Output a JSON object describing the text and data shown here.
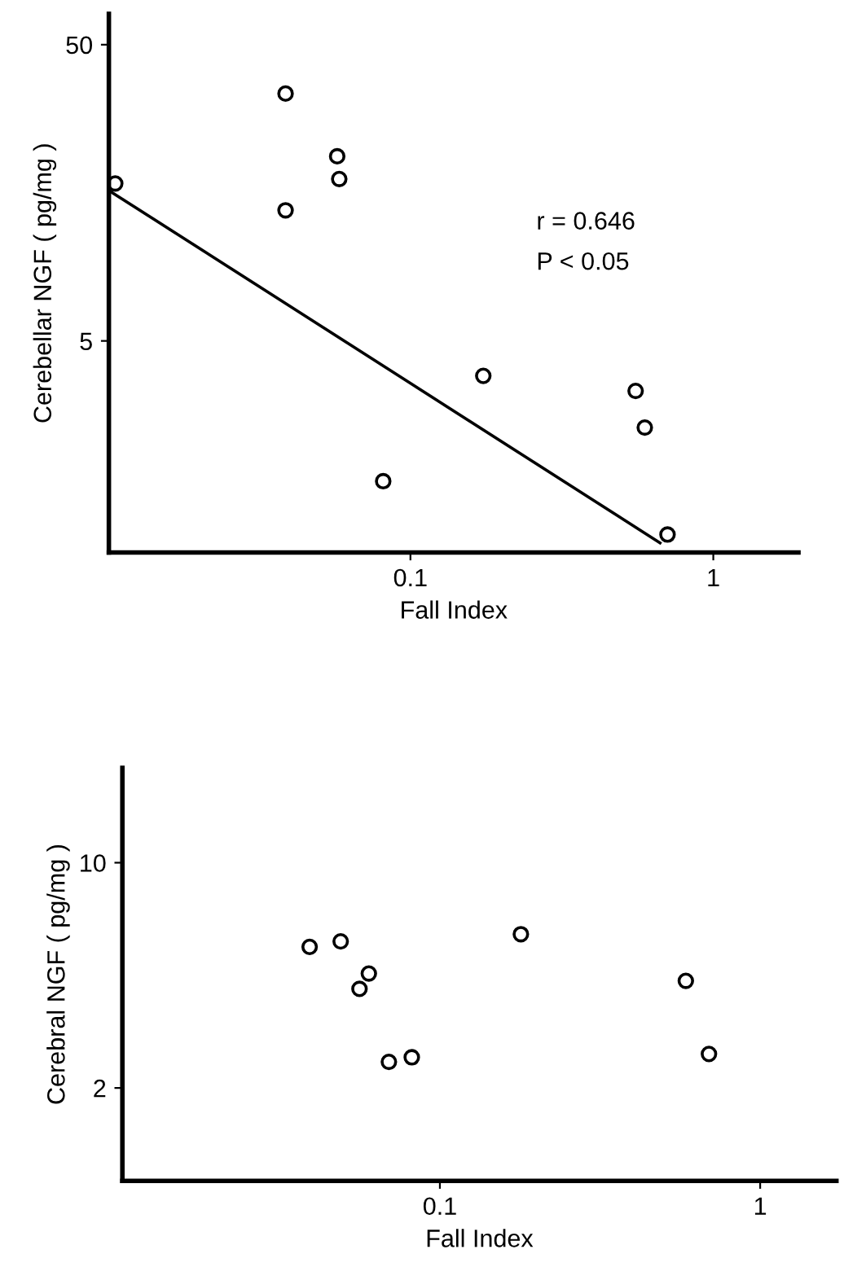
{
  "chart_data": [
    {
      "type": "scatter",
      "xlabel": "Fall Index",
      "ylabel": "Cerebellar NGF ( pg/mg )",
      "log": "xy",
      "xlim": [
        0.0101,
        1.91
      ],
      "ylim": [
        0.966,
        63.5
      ],
      "xticks": [
        0.1,
        1
      ],
      "yticks": [
        5,
        50
      ],
      "grid": false,
      "marker": "circle",
      "annotations": [
        "r = 0.646",
        "P < 0.05"
      ],
      "series": [
        {
          "color": "#000000",
          "x": [
            0.0106,
            0.0387,
            0.0387,
            0.0573,
            0.0582,
            0.0813,
            0.174,
            0.554,
            0.594,
            0.706
          ],
          "values": [
            17.0,
            34.2,
            13.8,
            21.0,
            17.6,
            1.68,
            3.81,
            3.39,
            2.55,
            1.11
          ]
        },
        {
          "type": "line",
          "color": "#000000",
          "line_style": "solid",
          "marker": "none",
          "x": [
            0.0101,
            0.667
          ],
          "values": [
            16.1,
            1.04
          ]
        }
      ]
    },
    {
      "type": "scatter",
      "xlabel": "Fall Index",
      "ylabel": "Cerebral NGF ( pg/mg )",
      "log": "xy",
      "xlim": [
        0.0102,
        1.73
      ],
      "ylim": [
        1.03,
        19.7
      ],
      "xticks": [
        0.1,
        1
      ],
      "yticks": [
        2,
        10
      ],
      "grid": false,
      "marker": "circle",
      "series": [
        {
          "color": "#000000",
          "x": [
            0.0392,
            0.049,
            0.06,
            0.0561,
            0.0693,
            0.0817,
            0.179,
            0.586,
            0.692
          ],
          "values": [
            5.48,
            5.7,
            4.53,
            4.06,
            2.41,
            2.49,
            6.0,
            4.3,
            2.55
          ]
        }
      ]
    }
  ]
}
